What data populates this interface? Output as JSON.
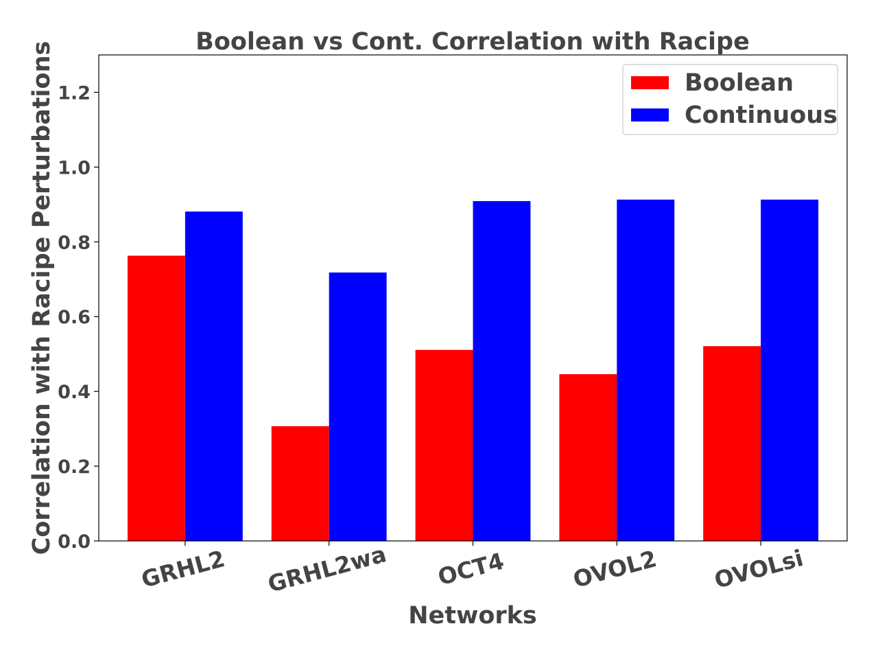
{
  "chart_data": {
    "type": "bar",
    "title": "Boolean vs Cont. Correlation with Racipe",
    "xlabel": "Networks",
    "ylabel": "Correlation with Racipe Perturbations",
    "categories": [
      "GRHL2",
      "GRHL2wa",
      "OCT4",
      "OVOL2",
      "OVOLsi"
    ],
    "series": [
      {
        "name": "Boolean",
        "color": "#ff0000",
        "values": [
          0.763,
          0.307,
          0.511,
          0.446,
          0.521
        ]
      },
      {
        "name": "Continuous",
        "color": "#0000ff",
        "values": [
          0.881,
          0.718,
          0.909,
          0.913,
          0.913
        ]
      }
    ],
    "ylim": [
      0,
      1.3
    ],
    "yticks": [
      "0.0",
      "0.2",
      "0.4",
      "0.6",
      "0.8",
      "1.0",
      "1.2"
    ],
    "grid": false,
    "legend_position": "top-right"
  }
}
